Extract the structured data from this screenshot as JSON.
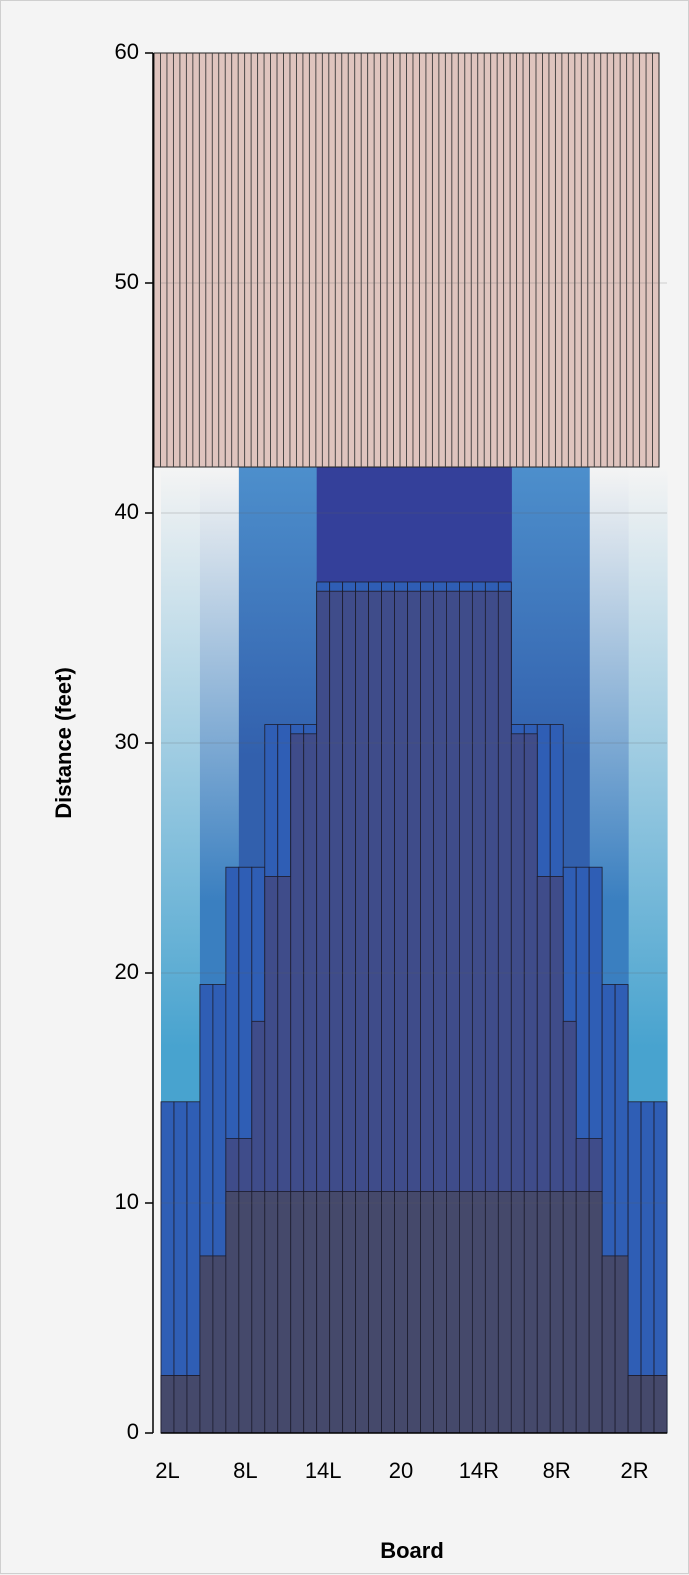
{
  "chart_data": {
    "type": "bar",
    "boards": 39,
    "xlabel": "Board",
    "ylabel": "Distance (feet)",
    "ylim": [
      0,
      60
    ],
    "yticks": [
      "0",
      "10",
      "20",
      "30",
      "40",
      "50",
      "60"
    ],
    "xticks": [
      {
        "board": 1,
        "label": "2L"
      },
      {
        "board": 7,
        "label": "8L"
      },
      {
        "board": 13,
        "label": "14L"
      },
      {
        "board": 19,
        "label": "20"
      },
      {
        "board": 25,
        "label": "14R"
      },
      {
        "board": 31,
        "label": "8R"
      },
      {
        "board": 37,
        "label": "2R"
      }
    ],
    "top_zone": {
      "from": 42,
      "to": 60,
      "color": "#dfc4be"
    },
    "oil_pattern": {
      "lane_end_color": "#f4f4f4",
      "levels": [
        {
          "name": "level-1",
          "color": "#48a3cf",
          "boards": [
            1,
            2,
            3
          ],
          "length": 42
        },
        {
          "name": "level-2",
          "color": "#3a7fc0",
          "boards": [
            4,
            5,
            6
          ],
          "length": 42
        },
        {
          "name": "level-3",
          "color": "#3260ad",
          "boards": [
            7,
            8,
            9,
            10,
            11,
            12
          ],
          "length": 42
        },
        {
          "name": "level-4",
          "color": "#34409a",
          "boards": [
            13,
            14,
            15,
            16,
            17,
            18,
            19,
            20,
            21,
            22,
            23,
            24,
            25,
            26
          ],
          "length": 42
        }
      ]
    },
    "series": [
      {
        "name": "1",
        "color": "#45496b",
        "values": [
          2.5,
          2.5,
          2.5,
          7.7,
          7.7,
          10.5,
          10.5,
          10.5,
          10.5,
          10.5,
          10.5,
          10.5,
          10.5,
          10.5,
          10.5,
          10.5,
          10.5,
          10.5,
          10.5,
          10.5,
          10.5,
          10.5,
          10.5,
          10.5,
          10.5,
          10.5,
          10.5,
          10.5,
          10.5,
          10.5,
          10.5,
          10.5,
          10.5,
          10.5,
          7.7,
          7.7,
          2.5,
          2.5,
          2.5
        ]
      },
      {
        "name": "2",
        "color": "#3f4c8a",
        "values": [
          2.5,
          2.5,
          2.5,
          7.7,
          7.7,
          12.8,
          12.8,
          17.9,
          24.2,
          24.2,
          30.4,
          30.4,
          36.6,
          36.6,
          36.6,
          36.6,
          36.6,
          36.6,
          36.6,
          36.6,
          36.6,
          36.6,
          36.6,
          36.6,
          36.6,
          36.6,
          36.6,
          30.4,
          30.4,
          24.2,
          24.2,
          17.9,
          12.8,
          12.8,
          7.7,
          7.7,
          2.5,
          2.5,
          2.5
        ]
      },
      {
        "name": "3",
        "color": "#2f5eb5",
        "values": [
          14.4,
          14.4,
          14.4,
          19.5,
          19.5,
          24.6,
          24.6,
          24.6,
          30.8,
          30.8,
          30.8,
          30.8,
          37.0,
          37.0,
          37.0,
          37.0,
          37.0,
          37.0,
          37.0,
          37.0,
          37.0,
          37.0,
          37.0,
          37.0,
          37.0,
          37.0,
          37.0,
          30.8,
          30.8,
          30.8,
          30.8,
          24.6,
          24.6,
          24.6,
          19.5,
          19.5,
          14.4,
          14.4,
          14.4
        ]
      }
    ]
  }
}
